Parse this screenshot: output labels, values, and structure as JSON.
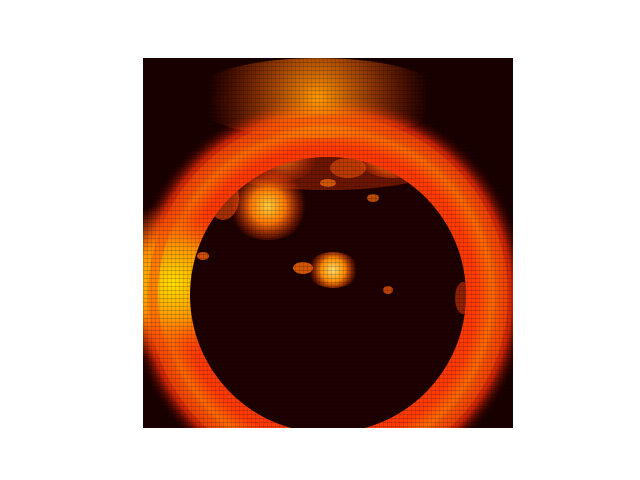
{
  "figure": {
    "background_color": "#ffffff",
    "panel_color": "#1a0000"
  },
  "image": {
    "colormap": [
      "#1a0000",
      "#5a0000",
      "#b01a00",
      "#ff4a00",
      "#ff8a00",
      "#ffc800",
      "#ffff60"
    ]
  }
}
